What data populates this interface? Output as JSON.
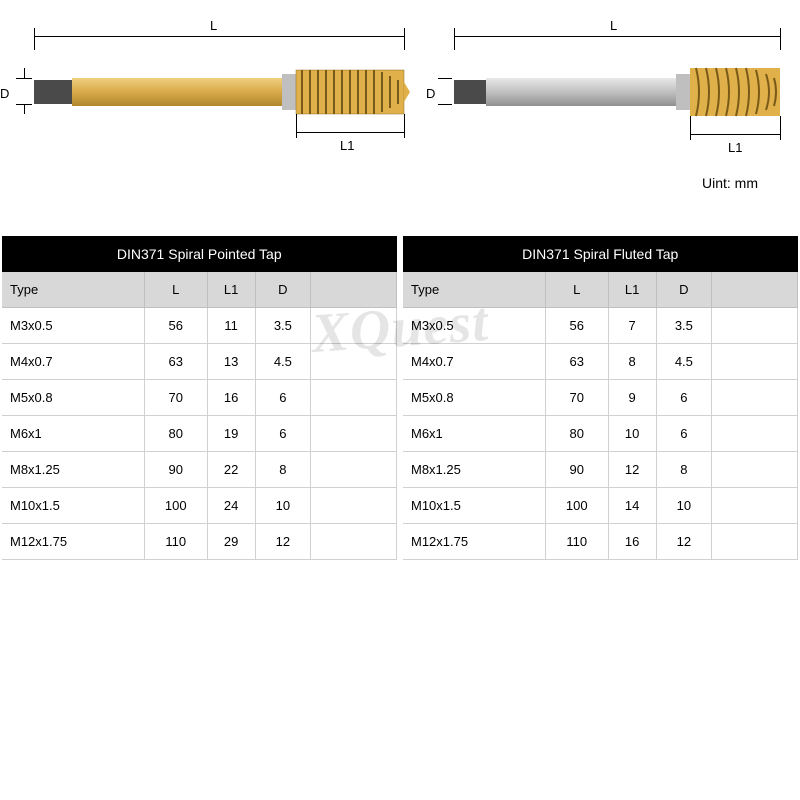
{
  "unit_label": "Uint: mm",
  "watermark": "XQuest",
  "diagrams": {
    "labels": {
      "L": "L",
      "L1": "L1",
      "D": "D"
    }
  },
  "colors": {
    "table_header_bg": "#000000",
    "table_header_fg": "#ffffff",
    "col_header_bg": "#d8d8d8",
    "border": "#d0d0d0",
    "shank_gold": "#d8a948",
    "shank_silver": "#c0c0c0",
    "shank_dark": "#5a5a5a",
    "tip_gold": "#e0b14a"
  },
  "tables": [
    {
      "title": "DIN371 Spiral Pointed Tap",
      "columns": [
        "Type",
        "L",
        "L1",
        "D",
        ""
      ],
      "rows": [
        [
          "M3x0.5",
          "56",
          "11",
          "3.5",
          ""
        ],
        [
          "M4x0.7",
          "63",
          "13",
          "4.5",
          ""
        ],
        [
          "M5x0.8",
          "70",
          "16",
          "6",
          ""
        ],
        [
          "M6x1",
          "80",
          "19",
          "6",
          ""
        ],
        [
          "M8x1.25",
          "90",
          "22",
          "8",
          ""
        ],
        [
          "M10x1.5",
          "100",
          "24",
          "10",
          ""
        ],
        [
          "M12x1.75",
          "110",
          "29",
          "12",
          ""
        ]
      ]
    },
    {
      "title": "DIN371 Spiral Fluted Tap",
      "columns": [
        "Type",
        "L",
        "L1",
        "D",
        ""
      ],
      "rows": [
        [
          "M3x0.5",
          "56",
          "7",
          "3.5",
          ""
        ],
        [
          "M4x0.7",
          "63",
          "8",
          "4.5",
          ""
        ],
        [
          "M5x0.8",
          "70",
          "9",
          "6",
          ""
        ],
        [
          "M6x1",
          "80",
          "10",
          "6",
          ""
        ],
        [
          "M8x1.25",
          "90",
          "12",
          "8",
          ""
        ],
        [
          "M10x1.5",
          "100",
          "14",
          "10",
          ""
        ],
        [
          "M12x1.75",
          "110",
          "16",
          "12",
          ""
        ]
      ]
    }
  ]
}
